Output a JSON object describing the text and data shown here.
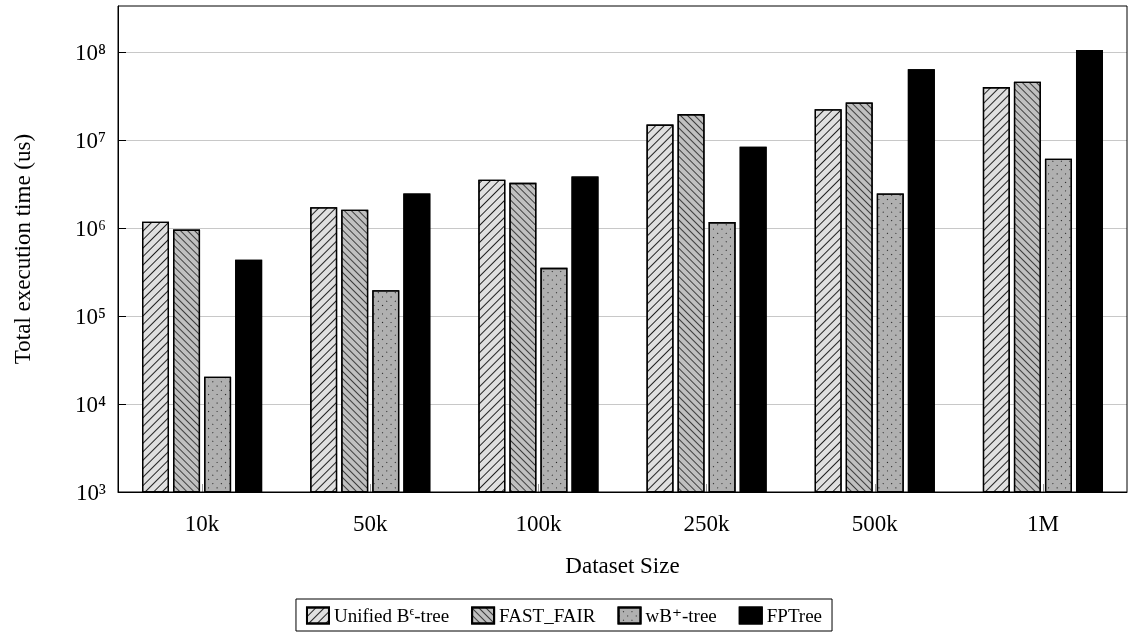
{
  "chart_data": {
    "type": "bar",
    "xlabel": "Dataset Size",
    "ylabel": "Total execution time (us)",
    "categories": [
      "10k",
      "50k",
      "100k",
      "250k",
      "500k",
      "1M"
    ],
    "series": [
      {
        "name": "Unified B$^{ϵ}$-tree",
        "color": "#e0e0e0",
        "values": [
          1190000,
          1740000,
          3580000,
          15200000,
          22700000,
          40600000
        ]
      },
      {
        "name": "FAST_FAIR",
        "color": "#c0c0c0",
        "values": [
          970000,
          1630000,
          3300000,
          20000000,
          27200000,
          46700000
        ]
      },
      {
        "name": "wB⁺-tree",
        "color": "#b0b0b0",
        "values": [
          20500,
          198000,
          356000,
          1180000,
          2500000,
          6200000
        ]
      },
      {
        "name": "FPTree",
        "color": "#000000",
        "values": [
          440000,
          2500000,
          3900000,
          8500000,
          65000000,
          107000000
        ]
      }
    ],
    "log": "y",
    "ylim": [
      1000,
      340000000
    ],
    "yticks": [
      {
        "value": 1000,
        "label": "10³"
      },
      {
        "value": 10000,
        "label": "10⁴"
      },
      {
        "value": 100000,
        "label": "10⁵"
      },
      {
        "value": 1000000,
        "label": "10⁶"
      },
      {
        "value": 10000000,
        "label": "10⁷"
      },
      {
        "value": 100000000,
        "label": "10⁸"
      }
    ],
    "grid": "y",
    "legend": "bottom"
  }
}
